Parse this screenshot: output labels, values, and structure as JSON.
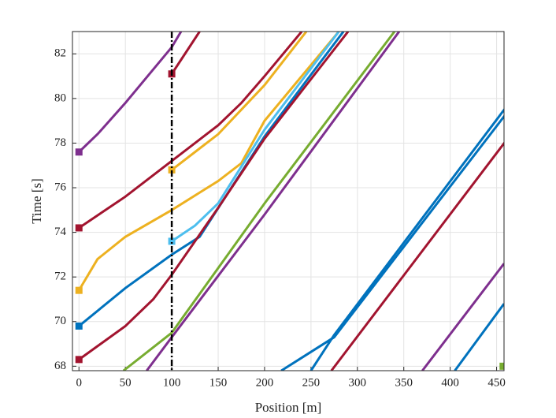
{
  "chart_data": {
    "type": "line",
    "xlabel": "Position [m]",
    "ylabel": "Time [s]",
    "xlim": [
      -7,
      458
    ],
    "ylim": [
      67.8,
      83
    ],
    "xticks": [
      0,
      50,
      100,
      150,
      200,
      250,
      300,
      350,
      400,
      450
    ],
    "yticks": [
      68,
      70,
      72,
      74,
      76,
      78,
      80,
      82
    ],
    "grid": true,
    "vline": {
      "x": 100,
      "color": "#000000"
    },
    "series": [
      {
        "color": "#7e2f8e",
        "marker": true,
        "x": [
          0,
          20,
          50,
          100,
          110
        ],
        "values": [
          77.6,
          78.4,
          79.8,
          82.3,
          83
        ]
      },
      {
        "color": "#a2142f",
        "marker": true,
        "x": [
          0,
          50,
          100,
          150,
          175,
          200,
          240
        ],
        "values": [
          74.2,
          75.6,
          77.2,
          78.8,
          79.8,
          81,
          83
        ]
      },
      {
        "color": "#a2142f",
        "marker": true,
        "x": [
          100,
          130
        ],
        "values": [
          81.1,
          83
        ]
      },
      {
        "color": "#edb120",
        "marker": true,
        "x": [
          100,
          150,
          200,
          245
        ],
        "values": [
          76.8,
          78.4,
          80.6,
          83
        ]
      },
      {
        "color": "#edb120",
        "marker": true,
        "x": [
          0,
          20,
          50,
          100,
          150,
          175,
          200,
          280
        ],
        "values": [
          71.4,
          72.8,
          73.8,
          75,
          76.3,
          77.1,
          79,
          83
        ]
      },
      {
        "color": "#0072bd",
        "marker": true,
        "x": [
          0,
          50,
          100,
          130,
          200,
          285
        ],
        "values": [
          69.8,
          71.5,
          73,
          73.8,
          78.3,
          83
        ]
      },
      {
        "color": "#4dbeee",
        "marker": true,
        "x": [
          100,
          125,
          150,
          200,
          280
        ],
        "values": [
          73.6,
          74.3,
          75.3,
          78.6,
          83
        ]
      },
      {
        "color": "#a2142f",
        "marker": true,
        "x": [
          0,
          50,
          80,
          100,
          150,
          200,
          290
        ],
        "values": [
          68.3,
          69.8,
          71,
          72.1,
          75.1,
          78.2,
          83
        ]
      },
      {
        "color": "#77ac30",
        "marker": false,
        "x": [
          48,
          100,
          200,
          340
        ],
        "values": [
          67.8,
          69.5,
          75.3,
          83
        ]
      },
      {
        "color": "#7e2f8e",
        "marker": false,
        "x": [
          73,
          100,
          200,
          345
        ],
        "values": [
          67.8,
          69.3,
          74.8,
          83
        ]
      },
      {
        "color": "#0072bd",
        "marker": false,
        "x": [
          218,
          275,
          460
        ],
        "values": [
          67.8,
          69.3,
          79.3
        ]
      },
      {
        "color": "#0072bd",
        "marker": false,
        "x": [
          250,
          275,
          460
        ],
        "values": [
          67.8,
          69.4,
          79.6
        ]
      },
      {
        "color": "#a2142f",
        "marker": false,
        "x": [
          272,
          460
        ],
        "values": [
          67.8,
          78.1
        ]
      },
      {
        "color": "#7e2f8e",
        "marker": false,
        "x": [
          370,
          458
        ],
        "values": [
          67.8,
          72.6
        ]
      },
      {
        "color": "#0072bd",
        "marker": false,
        "x": [
          405,
          458
        ],
        "values": [
          67.8,
          70.8
        ]
      },
      {
        "color": "#77ac30",
        "marker": true,
        "x": [
          457,
          460
        ],
        "values": [
          68,
          68.2
        ]
      }
    ]
  }
}
